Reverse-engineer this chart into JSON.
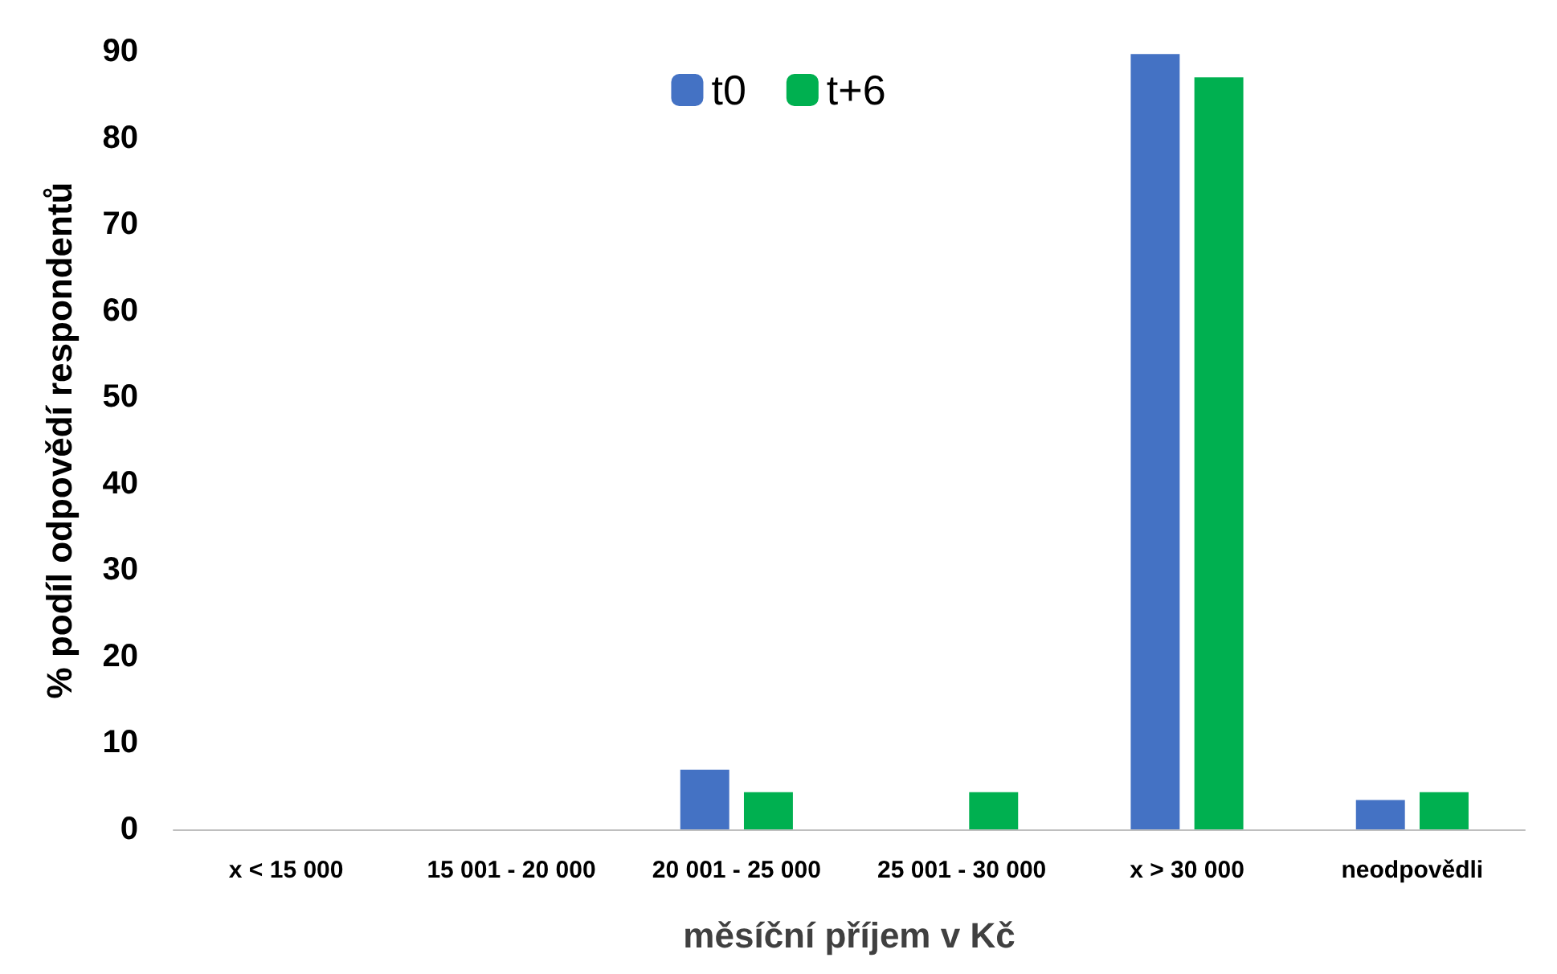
{
  "chart_data": {
    "type": "bar",
    "xlabel": "měsíční příjem v Kč",
    "ylabel": "% podíl odpovědí respondentů",
    "categories": [
      "x < 15 000",
      "15 001 - 20 000",
      "20 001 - 25 000",
      "25 001 - 30 000",
      "x > 30 000",
      "neodpovědli"
    ],
    "series": [
      {
        "name": "t0",
        "color": "#4472c4",
        "values": [
          0,
          0,
          6.9,
          0,
          89.7,
          3.4
        ]
      },
      {
        "name": "t+6",
        "color": "#00b050",
        "values": [
          0,
          0,
          4.3,
          4.3,
          87.0,
          4.3
        ]
      }
    ],
    "ylim": [
      0,
      90
    ],
    "yticks": [
      0,
      10,
      20,
      30,
      40,
      50,
      60,
      70,
      80,
      90
    ],
    "grid": false,
    "legend": "top"
  }
}
